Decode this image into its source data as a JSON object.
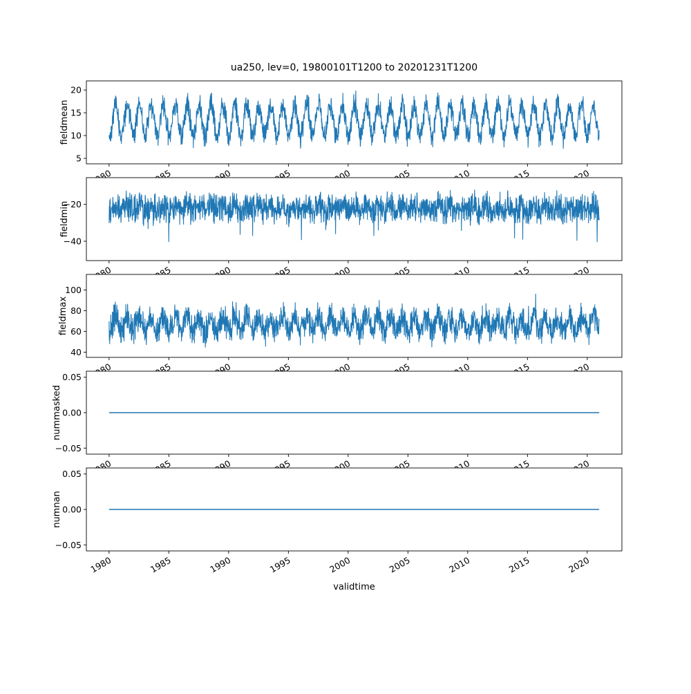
{
  "chart_data": {
    "type": "line",
    "title": "ua250, lev=0, 19800101T1200 to 20201231T1200",
    "xlabel": "validtime",
    "line_color": "#1f77b4",
    "x_range": [
      1980.0,
      2021.0
    ],
    "xlim": [
      1978.1,
      2022.9
    ],
    "xticks": [
      1980,
      1985,
      1990,
      1995,
      2000,
      2005,
      2010,
      2015,
      2020
    ],
    "xtick_labels": [
      "1980",
      "1985",
      "1990",
      "1995",
      "2000",
      "2005",
      "2010",
      "2015",
      "2020"
    ],
    "n_points": 2200,
    "seed": 42,
    "grid": false,
    "legend": "none",
    "subplots": [
      {
        "ylabel": "fieldmean",
        "ylim": [
          3.8,
          22.0
        ],
        "yticks": [
          5,
          10,
          15,
          20
        ],
        "ytick_labels": [
          "5",
          "10",
          "15",
          "20"
        ],
        "series": {
          "kind": "seasonal-noise",
          "base": 13.3,
          "seasonal_amplitude": 3.4,
          "noise_amplitude": 2.4,
          "spike_probability": 0.004,
          "spike_amplitude": 3.0,
          "clamp": [
            4.6,
            21.6
          ],
          "approx_min": 5,
          "approx_max": 21.5
        }
      },
      {
        "ylabel": "fieldmin",
        "ylim": [
          -50.5,
          -5.5
        ],
        "yticks": [
          -40,
          -20
        ],
        "ytick_labels": [
          "−40",
          "−20"
        ],
        "series": {
          "kind": "seasonal-noise",
          "base": -22.0,
          "seasonal_amplitude": 1.5,
          "noise_amplitude": 7.5,
          "spike_probability": 0.008,
          "spike_amplitude": -14,
          "clamp": [
            -50,
            -8
          ],
          "approx_min": -50,
          "approx_max": -8
        }
      },
      {
        "ylabel": "fieldmax",
        "ylim": [
          35.0,
          115.0
        ],
        "yticks": [
          40,
          60,
          80,
          100
        ],
        "ytick_labels": [
          "40",
          "60",
          "80",
          "100"
        ],
        "series": {
          "kind": "seasonal-noise",
          "base": 67.0,
          "seasonal_amplitude": 7.0,
          "noise_amplitude": 13.0,
          "spike_probability": 0.01,
          "spike_amplitude": 16,
          "clamp": [
            40,
            108
          ],
          "approx_min": 40,
          "approx_max": 108
        }
      },
      {
        "ylabel": "nummasked",
        "ylim": [
          -0.0585,
          0.0585
        ],
        "yticks": [
          -0.05,
          0.0,
          0.05
        ],
        "ytick_labels": [
          "−0.05",
          "0.00",
          "0.05"
        ],
        "series": {
          "kind": "constant",
          "value": 0.0
        }
      },
      {
        "ylabel": "numnan",
        "ylim": [
          -0.0585,
          0.0585
        ],
        "yticks": [
          -0.05,
          0.0,
          0.05
        ],
        "ytick_labels": [
          "−0.05",
          "0.00",
          "0.05"
        ],
        "series": {
          "kind": "constant",
          "value": 0.0
        }
      }
    ]
  }
}
